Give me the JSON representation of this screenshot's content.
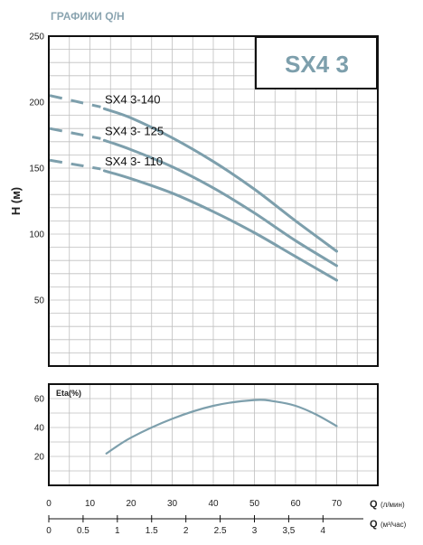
{
  "header": {
    "title": "ГРАФИКИ Q/H"
  },
  "model_box": {
    "label": "SX4 3"
  },
  "colors": {
    "curve": "#7d9fac",
    "title": "#8aa4b0",
    "grid": "#bfbfbf",
    "frame": "#111111"
  },
  "chart_data": [
    {
      "type": "line",
      "title": "",
      "ylabel": "H (м)",
      "xlabel": "Q (л/мин)",
      "xlim": [
        0,
        80
      ],
      "ylim": [
        0,
        250
      ],
      "x_ticks": [
        0,
        10,
        20,
        30,
        40,
        50,
        60,
        70
      ],
      "y_ticks": [
        50,
        100,
        150,
        200,
        250
      ],
      "grid": true,
      "series": [
        {
          "name": "SX4 3-140",
          "shutoff_head": 205,
          "x": [
            13.5,
            20,
            30,
            40,
            50,
            60,
            70
          ],
          "y": [
            195,
            188,
            173,
            155,
            134,
            110,
            87
          ]
        },
        {
          "name": "SX4 3- 125",
          "shutoff_head": 180,
          "x": [
            13.5,
            20,
            30,
            40,
            50,
            60,
            70
          ],
          "y": [
            171,
            164,
            151,
            135,
            116,
            95,
            76
          ]
        },
        {
          "name": "SX4 3- 110",
          "shutoff_head": 156,
          "x": [
            13.5,
            20,
            30,
            40,
            50,
            60,
            70
          ],
          "y": [
            148,
            142,
            131,
            117,
            101,
            83,
            65
          ]
        }
      ]
    },
    {
      "type": "line",
      "title": "",
      "ylabel": "Eta(%)",
      "xlim": [
        0,
        80
      ],
      "ylim": [
        0,
        70
      ],
      "y_ticks": [
        20,
        40,
        60
      ],
      "grid": true,
      "series": [
        {
          "name": "",
          "x": [
            14,
            20,
            30,
            40,
            50,
            55,
            60,
            65,
            70
          ],
          "y": [
            22,
            33,
            46,
            55,
            59,
            58,
            55,
            49,
            41
          ]
        }
      ]
    }
  ],
  "x_axis_primary": {
    "label": "Q",
    "unit": "(л/мин)",
    "ticks": [
      "0",
      "10",
      "20",
      "30",
      "40",
      "50",
      "60",
      "70"
    ]
  },
  "x_axis_secondary": {
    "label": "Q",
    "unit": "(м³/час)",
    "ticks": [
      {
        "v": 0,
        "t": "0"
      },
      {
        "v": 0.5,
        "t": "0.5"
      },
      {
        "v": 1,
        "t": "1"
      },
      {
        "v": 1.5,
        "t": "1.5"
      },
      {
        "v": 2,
        "t": "2"
      },
      {
        "v": 2.5,
        "t": "2.5"
      },
      {
        "v": 3,
        "t": "3"
      },
      {
        "v": 3.5,
        "t": "3,5"
      },
      {
        "v": 4,
        "t": "4"
      }
    ]
  }
}
